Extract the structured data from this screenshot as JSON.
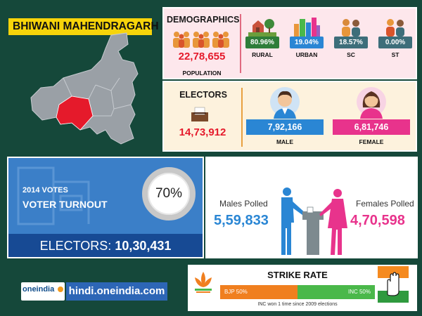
{
  "title": "BHIWANI MAHENDRAGARH",
  "colors": {
    "background": "#15483a",
    "title_bg": "#f7d40a",
    "highlight": "#e51a2b",
    "male": "#2a86d4",
    "female": "#e8338c",
    "bjp": "#f07f1f",
    "inc": "#4ab84a"
  },
  "demographics": {
    "title": "DEMOGRAPHICS",
    "population_value": "22,78,655",
    "population_label": "POPULATION",
    "items": [
      {
        "value": "80.96%",
        "label": "RURAL",
        "icon": "rural-icon",
        "color": "#2e7d3a"
      },
      {
        "value": "19.04%",
        "label": "URBAN",
        "icon": "urban-icon",
        "color": "#2a86d4"
      },
      {
        "value": "18.57%",
        "label": "SC",
        "icon": "sc-people-icon",
        "color": "#3d6e7a"
      },
      {
        "value": "0.00%",
        "label": "ST",
        "icon": "st-people-icon",
        "color": "#3d6e7a"
      }
    ]
  },
  "electors": {
    "title": "ELECTORS",
    "value": "14,73,912",
    "male_value": "7,92,166",
    "male_label": "MALE",
    "female_value": "6,81,746",
    "female_label": "FEMALE"
  },
  "turnout": {
    "year_label": "2014 VOTES",
    "label": "VOTER TURNOUT",
    "percent": "70%",
    "electors_label": "ELECTORS:",
    "electors_value": "10,30,431"
  },
  "polled": {
    "males_label": "Males Polled",
    "males_value": "5,59,833",
    "females_label": "Females Polled",
    "females_value": "4,70,598"
  },
  "branding": {
    "logo_text": "oneindia",
    "url": "hindi.oneindia.com"
  },
  "strike_rate": {
    "title": "STRIKE RATE",
    "bjp_label": "BJP 50%",
    "inc_label": "INC 50%",
    "bjp_share": 0.5,
    "inc_share": 0.5,
    "note": "INC won 1 time since 2009 elections"
  }
}
